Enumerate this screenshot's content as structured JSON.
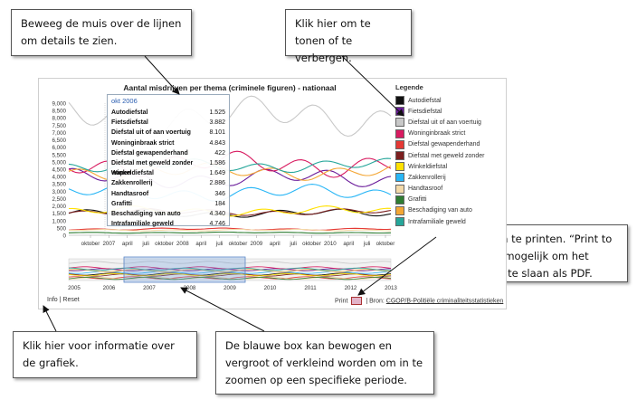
{
  "callouts": {
    "hover": "Beweeg de muis over de lijnen om details te zien.",
    "toggle": "Klik hier om te tonen of te verbergen.",
    "print": "Klik hier om te printen. “Print to file” is ook mogelijk om het bestand op te slaan als PDF.",
    "info": "Klik hier voor informatie over de grafiek.",
    "zoom": "De blauwe box kan bewogen en vergroot of verkleind worden om in te zoomen op een specifieke periode."
  },
  "chart": {
    "title": "Aantal misdrijven per thema (criminele figuren) - nationaal",
    "y_ticks": [
      "9,000",
      "8,500",
      "8,000",
      "7,500",
      "7,000",
      "6,500",
      "6,000",
      "5,500",
      "5,000",
      "4,500",
      "4,000",
      "3,500",
      "3,000",
      "2,500",
      "2,000",
      "1,500",
      "1,000",
      "500",
      "0"
    ],
    "x_labels": [
      "oktober",
      "2007",
      "april",
      "juli",
      "oktober",
      "2008",
      "april",
      "juli",
      "oktober",
      "2009",
      "april",
      "juli",
      "oktober",
      "2010",
      "april",
      "juli",
      "oktober"
    ],
    "nav_labels": [
      "2005",
      "2006",
      "2007",
      "2008",
      "2009",
      "2010",
      "2011",
      "2012",
      "2013"
    ]
  },
  "chart_data": {
    "type": "line",
    "title": "Aantal misdrijven per thema (criminele figuren) - nationaal",
    "ylim": [
      0,
      9000
    ],
    "series": [
      {
        "name": "Autodiefstal",
        "values": [
          1525
        ]
      },
      {
        "name": "Fietsdiefstal",
        "values": [
          3882
        ]
      },
      {
        "name": "Diefstal uit of aan voertuig",
        "values": [
          8101
        ]
      },
      {
        "name": "Woninginbraak strict",
        "values": [
          4843
        ]
      },
      {
        "name": "Diefstal gewapenderhand",
        "values": [
          422
        ]
      },
      {
        "name": "Diefstal met geweld zonder wapen",
        "values": [
          1586
        ]
      },
      {
        "name": "Winkeldiefstal",
        "values": [
          1649
        ]
      },
      {
        "name": "Zakkenrollerij",
        "values": [
          2886
        ]
      },
      {
        "name": "Handtasroof",
        "values": [
          346
        ]
      },
      {
        "name": "Grafitti",
        "values": [
          184
        ]
      },
      {
        "name": "Beschadiging van auto",
        "values": [
          4340
        ]
      },
      {
        "name": "Intrafamiliale geweld",
        "values": [
          4746
        ]
      }
    ],
    "legend": "right"
  },
  "tooltip": {
    "date": "okt 2006",
    "rows": [
      {
        "label": "Autodiefstal",
        "value": "1.525"
      },
      {
        "label": "Fietsdiefstal",
        "value": "3.882"
      },
      {
        "label": "Diefstal uit of aan voertuig",
        "value": "8.101"
      },
      {
        "label": "Woninginbraak strict",
        "value": "4.843"
      },
      {
        "label": "Diefstal gewapenderhand",
        "value": "422"
      },
      {
        "label": "Diefstal met geweld zonder wapen",
        "value": "1.586"
      },
      {
        "label": "Winkeldiefstal",
        "value": "1.649"
      },
      {
        "label": "Zakkenrollerij",
        "value": "2.886"
      },
      {
        "label": "Handtasroof",
        "value": "346"
      },
      {
        "label": "Grafitti",
        "value": "184"
      },
      {
        "label": "Beschadiging van auto",
        "value": "4.340"
      },
      {
        "label": "Intrafamiliale geweld",
        "value": "4.746"
      }
    ]
  },
  "legend": {
    "title": "Legende",
    "items": [
      {
        "label": "Autodiefstal",
        "color": "#111111"
      },
      {
        "label": "Fietsdiefstal",
        "color": "#6a1b9a"
      },
      {
        "label": "Diefstal uit of aan voertuig",
        "color": "#c8c8c8"
      },
      {
        "label": "Woninginbraak strict",
        "color": "#d81b60"
      },
      {
        "label": "Diefstal gewapenderhand",
        "color": "#e53935"
      },
      {
        "label": "Diefstal met geweld zonder",
        "color": "#7b1f1f"
      },
      {
        "label": "Winkeldiefstal",
        "color": "#ffe000"
      },
      {
        "label": "Zakkenrollerij",
        "color": "#29b6f6"
      },
      {
        "label": "Handtasroof",
        "color": "#f3d9a8"
      },
      {
        "label": "Grafitti",
        "color": "#2e7d32"
      },
      {
        "label": "Beschadiging van auto",
        "color": "#f4a736"
      },
      {
        "label": "Intrafamiliale geweld",
        "color": "#26a69a"
      }
    ]
  },
  "footer": {
    "info": "Info",
    "separator": "|",
    "reset": "Reset",
    "print": "Print",
    "source_prefix": "| Bron:",
    "source_link": "CGOP/B-Politiële criminaliteitsstatistieken"
  }
}
